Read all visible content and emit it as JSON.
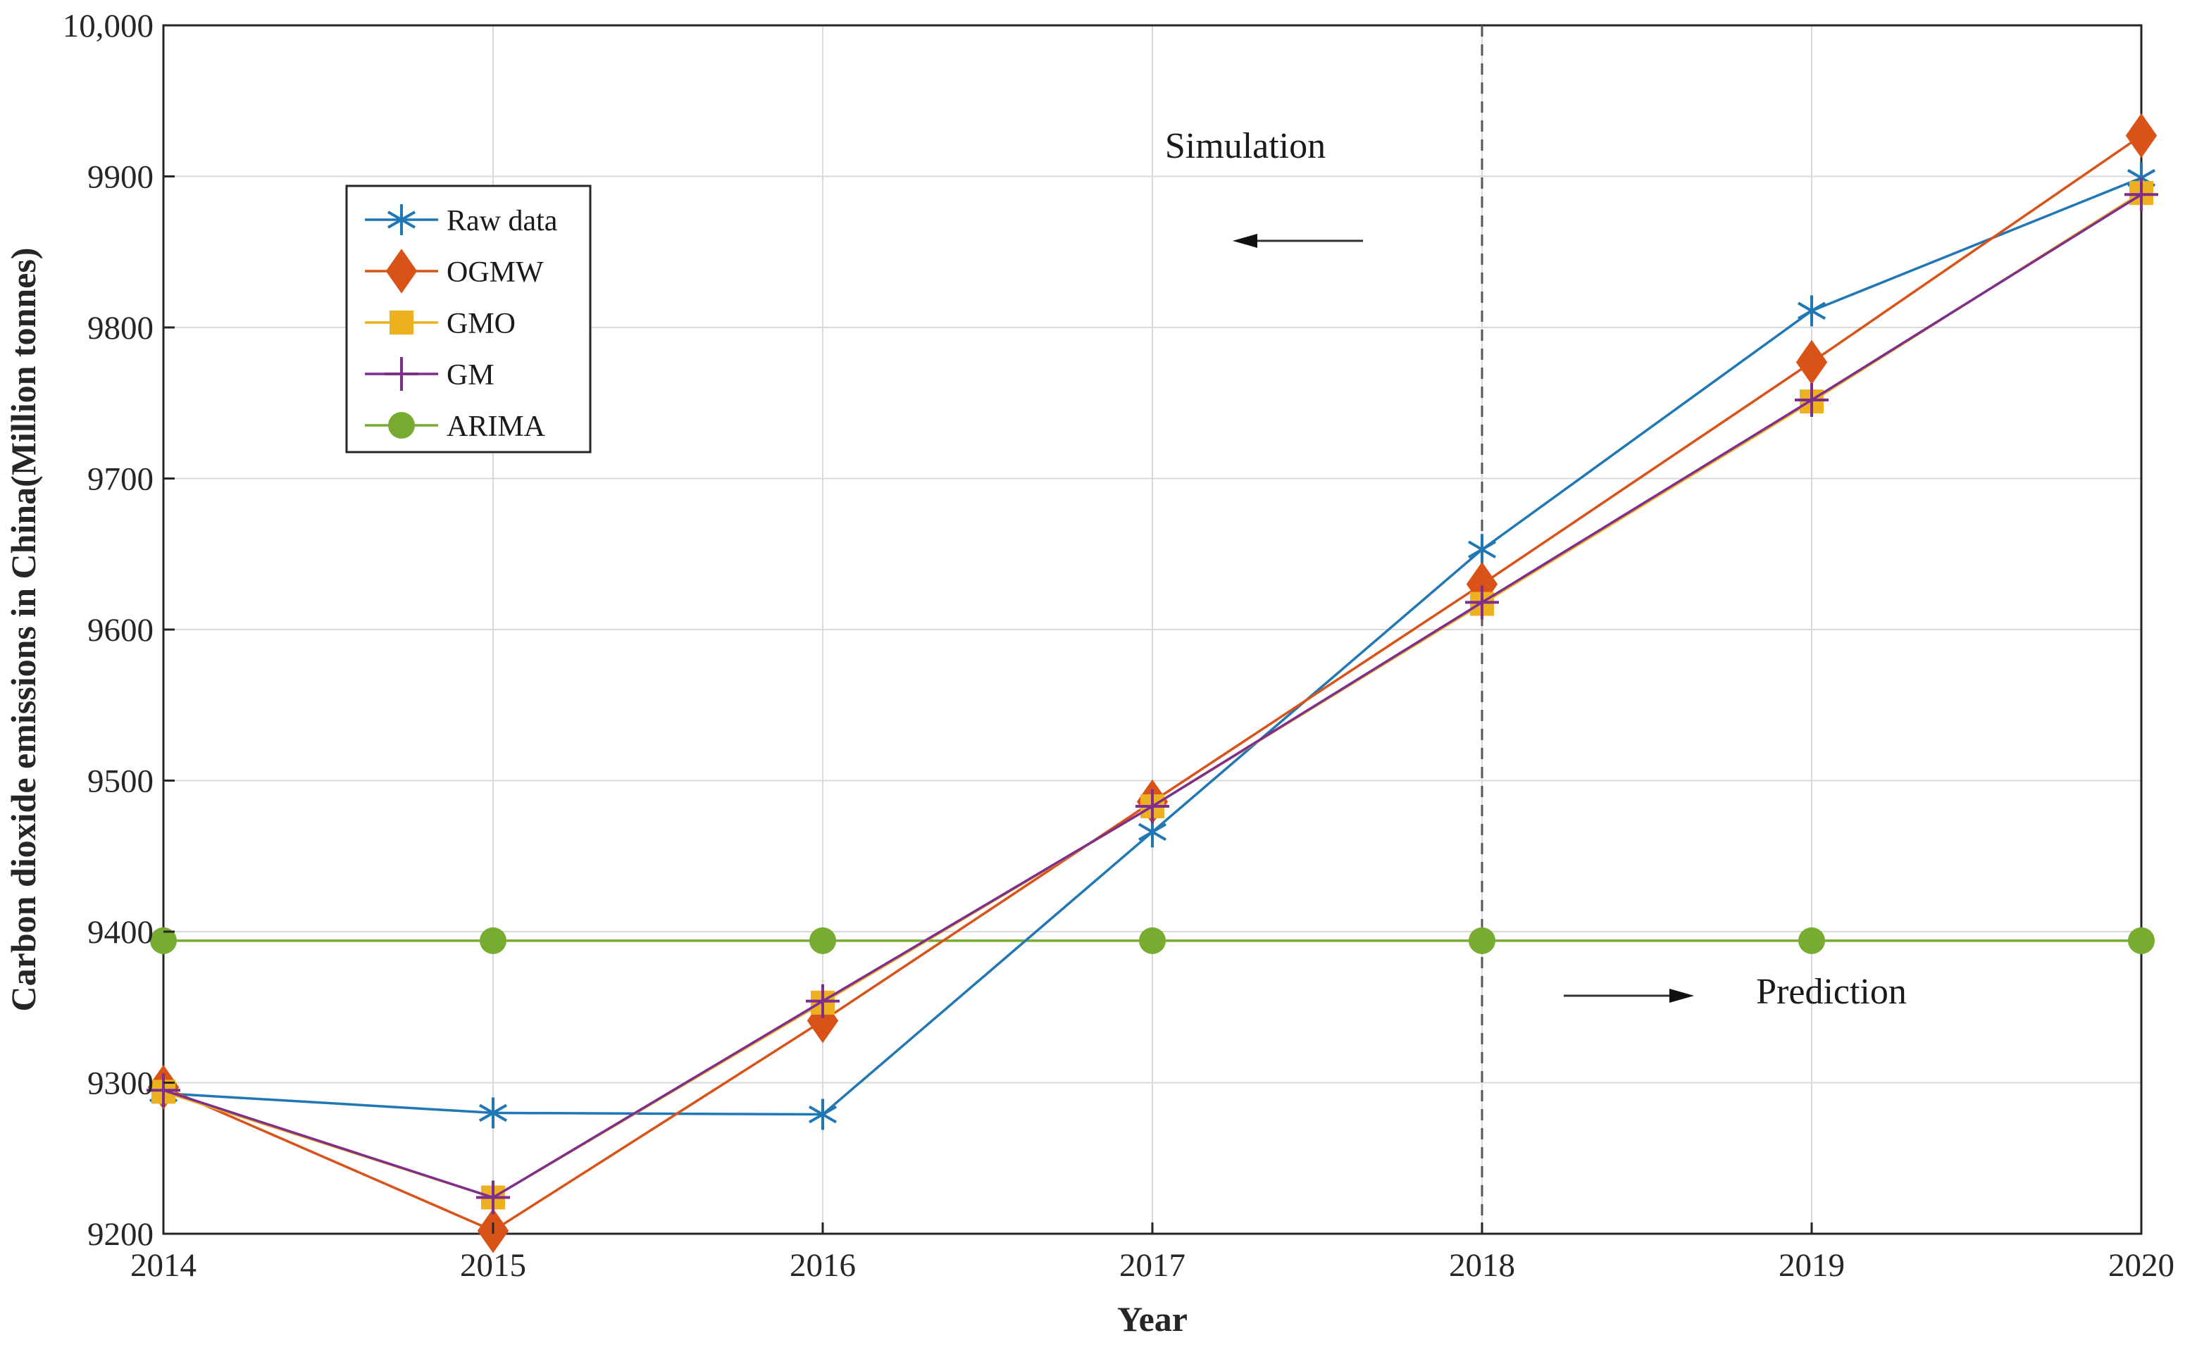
{
  "chart_data": {
    "type": "line",
    "title": "",
    "xlabel": "Year",
    "ylabel": "Carbon dioxide emissions in China(Million tonnes)",
    "x": [
      2014,
      2015,
      2016,
      2017,
      2018,
      2019,
      2020
    ],
    "x_tick_labels": [
      "2014",
      "2015",
      "2016",
      "2017",
      "2018",
      "2019",
      "2020"
    ],
    "ylim": [
      9200,
      10000
    ],
    "y_ticks": [
      9200,
      9300,
      9400,
      9500,
      9600,
      9700,
      9800,
      9900,
      10000
    ],
    "y_tick_labels": [
      "9200",
      "9300",
      "9400",
      "9500",
      "9600",
      "9700",
      "9800",
      "9900",
      "10,000"
    ],
    "grid": true,
    "legend_position": "top-left",
    "divider_x": 2018,
    "annotations": [
      {
        "text": "Simulation",
        "arrow": "left"
      },
      {
        "text": "Prediction",
        "arrow": "right"
      }
    ],
    "series": [
      {
        "name": "Raw data",
        "marker": "asterisk",
        "color": "#1f77b4",
        "values": [
          9293,
          9280,
          9279,
          9466,
          9653,
          9811,
          9899
        ]
      },
      {
        "name": "OGMW",
        "marker": "diamond",
        "color": "#d95319",
        "values": [
          9297,
          9202,
          9341,
          9486,
          9630,
          9777,
          9927
        ]
      },
      {
        "name": "GMO",
        "marker": "square",
        "color": "#edb120",
        "values": [
          9294,
          9224,
          9353,
          9483,
          9617,
          9751,
          9889
        ]
      },
      {
        "name": "GM",
        "marker": "plus",
        "color": "#7e2f8e",
        "values": [
          9295,
          9224,
          9354,
          9483,
          9618,
          9752,
          9888
        ]
      },
      {
        "name": "ARIMA",
        "marker": "circle",
        "color": "#77ac30",
        "values": [
          9394,
          9394,
          9394,
          9394,
          9394,
          9394,
          9394
        ]
      }
    ]
  }
}
